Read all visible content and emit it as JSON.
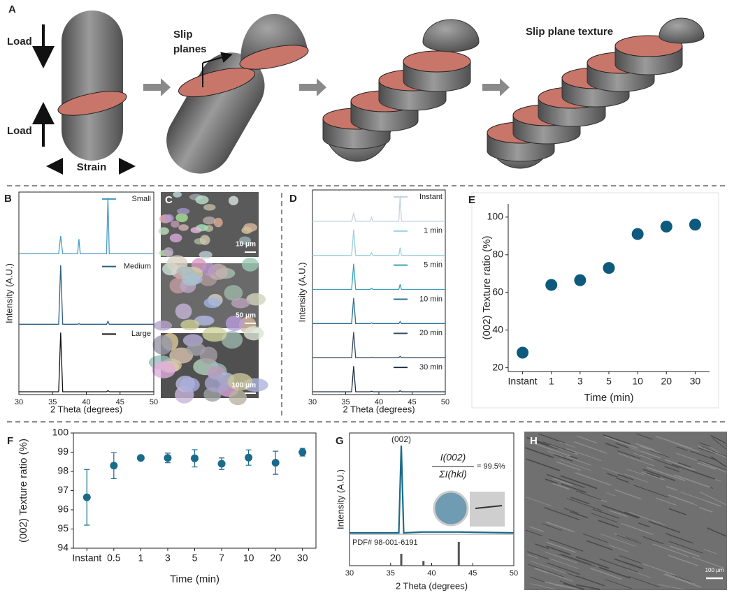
{
  "panels": {
    "a": {
      "label": "A",
      "load_top": "Load",
      "load_bottom": "Load",
      "strain": "Strain",
      "slip_planes": [
        "Slip",
        "planes"
      ],
      "texture": "Slip plane texture"
    },
    "c": {
      "label": "C",
      "scale_bars": [
        "10 μm",
        "50 μm",
        "100 μm"
      ]
    },
    "h": {
      "label": "H",
      "scale_bar": "100 μm"
    }
  },
  "chart_data": [
    {
      "label": "B",
      "type": "line",
      "xlabel": "2 Theta (degrees)",
      "ylabel": "Intensity (A.U.)",
      "xlim": [
        30,
        50
      ],
      "xticks": [
        30,
        35,
        40,
        45,
        50
      ],
      "x": [
        30,
        35.9,
        36.2,
        36.5,
        38.7,
        38.9,
        39.1,
        43.0,
        43.2,
        43.4,
        50
      ],
      "series": [
        {
          "name": "Small",
          "color": "#4a9cc4",
          "values": [
            5,
            5,
            35,
            5,
            5,
            30,
            5,
            5,
            100,
            5,
            5
          ]
        },
        {
          "name": "Medium",
          "color": "#2e5f80",
          "values": [
            0,
            0,
            100,
            0,
            0,
            1,
            0,
            0,
            5,
            0,
            0
          ]
        },
        {
          "name": "Large",
          "color": "#111111",
          "values": [
            0,
            0,
            100,
            0,
            0,
            0,
            0,
            0,
            2,
            0,
            0
          ]
        }
      ]
    },
    {
      "label": "D",
      "type": "line",
      "xlabel": "2 Theta (degrees)",
      "ylabel": "Intensity (A.U.)",
      "xlim": [
        30,
        50
      ],
      "xticks": [
        30,
        35,
        40,
        45,
        50
      ],
      "x": [
        30,
        35.9,
        36.2,
        36.5,
        38.7,
        38.9,
        39.1,
        43.0,
        43.2,
        43.4,
        50
      ],
      "series": [
        {
          "name": "Instant",
          "color": "#c3d4df",
          "values": [
            0,
            0,
            30,
            0,
            0,
            15,
            0,
            0,
            100,
            0,
            0
          ]
        },
        {
          "name": "1 min",
          "color": "#9bd0e0",
          "values": [
            0,
            0,
            100,
            0,
            0,
            10,
            0,
            0,
            30,
            0,
            0
          ]
        },
        {
          "name": "5 min",
          "color": "#3aa0b8",
          "values": [
            0,
            0,
            100,
            0,
            0,
            5,
            0,
            0,
            20,
            0,
            0
          ]
        },
        {
          "name": "10 min",
          "color": "#2c6f95",
          "values": [
            0,
            0,
            100,
            0,
            0,
            3,
            0,
            0,
            8,
            0,
            0
          ]
        },
        {
          "name": "20 min",
          "color": "#3a4e60",
          "values": [
            0,
            0,
            100,
            0,
            0,
            2,
            0,
            0,
            5,
            0,
            0
          ]
        },
        {
          "name": "30 min",
          "color": "#1e3247",
          "values": [
            0,
            0,
            100,
            0,
            0,
            2,
            0,
            0,
            4,
            0,
            0
          ]
        }
      ]
    },
    {
      "label": "E",
      "type": "scatter",
      "xlabel": "Time (min)",
      "ylabel": "(002) Texture ratio (%)",
      "color": "#0e5a7e",
      "categories": [
        "Instant",
        "1",
        "3",
        "5",
        "10",
        "20",
        "30"
      ],
      "values": [
        28,
        64,
        66.5,
        73,
        91,
        95,
        96
      ],
      "ylim": [
        18,
        107
      ],
      "yticks": [
        20,
        40,
        60,
        80,
        100
      ]
    },
    {
      "label": "F",
      "type": "scatter",
      "xlabel": "Time (min)",
      "ylabel": "(002) Texture ratio (%)",
      "color": "#1a6b8a",
      "categories": [
        "Instant",
        "0.5",
        "1",
        "3",
        "5",
        "7",
        "10",
        "20",
        "30"
      ],
      "values": [
        96.65,
        98.3,
        98.7,
        98.7,
        98.68,
        98.4,
        98.72,
        98.45,
        99.0
      ],
      "errors": [
        1.45,
        0.68,
        0.05,
        0.25,
        0.45,
        0.3,
        0.4,
        0.6,
        0.2
      ],
      "ylim": [
        94,
        100
      ],
      "yticks": [
        94,
        95,
        96,
        97,
        98,
        99,
        100
      ]
    },
    {
      "label": "G",
      "type": "line",
      "xlabel": "2 Theta (degrees)",
      "ylabel": "Intensity (A.U.)",
      "xlim": [
        30,
        50
      ],
      "xticks": [
        30,
        35,
        40,
        45,
        50
      ],
      "x": [
        30,
        36.0,
        36.3,
        36.6,
        38.9,
        43.2,
        50
      ],
      "series": [
        {
          "color": "#1a6b8a",
          "values": [
            0,
            0,
            100,
            0,
            1,
            1,
            0
          ]
        }
      ],
      "peak_label": "(002)",
      "formula": {
        "numerator": "I(002)",
        "denominator": "ΣI(hkl)",
        "result": "= 99.5%"
      },
      "reference": {
        "name": "PDF# 98-001-6191",
        "x": [
          36.3,
          39.0,
          43.3
        ],
        "values": [
          20,
          8,
          40
        ]
      }
    }
  ]
}
